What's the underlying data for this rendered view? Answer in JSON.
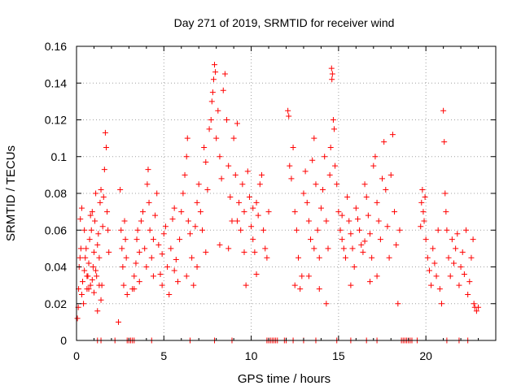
{
  "chart_data": {
    "type": "scatter",
    "title": "Day 271 of 2019, SRMTID for receiver wind",
    "xlabel": "GPS time / hours",
    "ylabel": "SRMTID / TECUs",
    "xlim": [
      0,
      24
    ],
    "ylim": [
      0,
      0.16
    ],
    "x_ticks": [
      0,
      5,
      10,
      15,
      20
    ],
    "x_tick_labels": [
      "0",
      "5",
      "10",
      "15",
      "20"
    ],
    "y_ticks": [
      0,
      0.02,
      0.04,
      0.06,
      0.08,
      0.1,
      0.12,
      0.14,
      0.16
    ],
    "y_tick_labels": [
      "0",
      "0.02",
      "0.04",
      "0.06",
      "0.08",
      "0.1",
      "0.12",
      "0.14",
      "0.16"
    ],
    "grid": true,
    "marker": "plus",
    "color": "#ff0000",
    "series": [
      {
        "name": "SRMTID",
        "points": [
          [
            0.05,
            0.012
          ],
          [
            0.1,
            0.018
          ],
          [
            0.12,
            0.028
          ],
          [
            0.15,
            0.04
          ],
          [
            0.2,
            0.045
          ],
          [
            0.22,
            0.066
          ],
          [
            0.3,
            0.025
          ],
          [
            0.35,
            0.032
          ],
          [
            0.4,
            0.02
          ],
          [
            0.45,
            0.038
          ],
          [
            0.5,
            0.045
          ],
          [
            0.55,
            0.05
          ],
          [
            0.6,
            0.028
          ],
          [
            0.65,
            0.035
          ],
          [
            0.7,
            0.042
          ],
          [
            0.75,
            0.055
          ],
          [
            0.8,
            0.03
          ],
          [
            0.85,
            0.06
          ],
          [
            0.9,
            0.07
          ],
          [
            0.95,
            0.04
          ],
          [
            1.0,
            0.048
          ],
          [
            1.05,
            0.065
          ],
          [
            1.1,
            0.08
          ],
          [
            1.15,
            0.035
          ],
          [
            1.2,
            0.052
          ],
          [
            1.25,
            0.058
          ],
          [
            1.3,
            0.045
          ],
          [
            1.35,
            0.075
          ],
          [
            1.4,
            0.082
          ],
          [
            1.45,
            0.03
          ],
          [
            1.5,
            0.062
          ],
          [
            1.55,
            0.078
          ],
          [
            1.6,
            0.093
          ],
          [
            1.65,
            0.113
          ],
          [
            1.7,
            0.105
          ],
          [
            1.75,
            0.07
          ],
          [
            1.8,
            0.06
          ],
          [
            1.85,
            0.048
          ],
          [
            1.2,
            0.016
          ],
          [
            0.3,
            0.072
          ],
          [
            0.6,
            0.035
          ],
          [
            0.7,
            0.028
          ],
          [
            0.9,
            0.033
          ],
          [
            1.0,
            0.026
          ],
          [
            1.1,
            0.038
          ],
          [
            1.3,
            0.03
          ],
          [
            1.4,
            0.022
          ],
          [
            0.8,
            0.068
          ],
          [
            0.45,
            0.06
          ],
          [
            0.25,
            0.05
          ],
          [
            2.4,
            0.01
          ],
          [
            2.5,
            0.082
          ],
          [
            2.55,
            0.06
          ],
          [
            2.6,
            0.05
          ],
          [
            2.65,
            0.04
          ],
          [
            2.7,
            0.03
          ],
          [
            2.75,
            0.065
          ],
          [
            2.8,
            0.055
          ],
          [
            2.85,
            0.045
          ],
          [
            2.9,
            0.025
          ],
          [
            3.2,
            0.028
          ],
          [
            3.3,
            0.035
          ],
          [
            3.4,
            0.042
          ],
          [
            3.45,
            0.055
          ],
          [
            3.5,
            0.06
          ],
          [
            3.6,
            0.048
          ],
          [
            3.7,
            0.065
          ],
          [
            3.8,
            0.07
          ],
          [
            3.9,
            0.05
          ],
          [
            4.0,
            0.04
          ],
          [
            4.05,
            0.085
          ],
          [
            4.1,
            0.093
          ],
          [
            4.15,
            0.075
          ],
          [
            4.2,
            0.06
          ],
          [
            4.3,
            0.045
          ],
          [
            4.4,
            0.055
          ],
          [
            4.5,
            0.068
          ],
          [
            4.6,
            0.08
          ],
          [
            4.7,
            0.052
          ],
          [
            4.8,
            0.036
          ],
          [
            4.9,
            0.047
          ],
          [
            5.0,
            0.058
          ],
          [
            5.1,
            0.062
          ],
          [
            5.2,
            0.04
          ],
          [
            5.3,
            0.025
          ],
          [
            5.4,
            0.05
          ],
          [
            5.5,
            0.066
          ],
          [
            5.6,
            0.072
          ],
          [
            5.7,
            0.044
          ],
          [
            5.8,
            0.032
          ],
          [
            5.9,
            0.055
          ],
          [
            6.0,
            0.07
          ],
          [
            6.1,
            0.08
          ],
          [
            6.2,
            0.09
          ],
          [
            6.3,
            0.1
          ],
          [
            6.35,
            0.11
          ],
          [
            6.4,
            0.065
          ],
          [
            6.5,
            0.058
          ],
          [
            6.6,
            0.045
          ],
          [
            6.7,
            0.03
          ],
          [
            6.8,
            0.062
          ],
          [
            6.9,
            0.075
          ],
          [
            7.0,
            0.085
          ],
          [
            7.1,
            0.07
          ],
          [
            7.2,
            0.06
          ],
          [
            7.3,
            0.105
          ],
          [
            7.4,
            0.097
          ],
          [
            7.5,
            0.082
          ],
          [
            7.6,
            0.115
          ],
          [
            7.7,
            0.12
          ],
          [
            7.75,
            0.13
          ],
          [
            7.8,
            0.135
          ],
          [
            7.85,
            0.142
          ],
          [
            7.9,
            0.15
          ],
          [
            7.95,
            0.146
          ],
          [
            8.0,
            0.11
          ],
          [
            8.1,
            0.125
          ],
          [
            8.2,
            0.1
          ],
          [
            8.3,
            0.088
          ],
          [
            8.4,
            0.136
          ],
          [
            8.5,
            0.145
          ],
          [
            8.6,
            0.12
          ],
          [
            8.7,
            0.095
          ],
          [
            8.8,
            0.078
          ],
          [
            8.9,
            0.065
          ],
          [
            9.0,
            0.11
          ],
          [
            9.1,
            0.09
          ],
          [
            9.2,
            0.118
          ],
          [
            9.3,
            0.075
          ],
          [
            9.4,
            0.06
          ],
          [
            9.5,
            0.085
          ],
          [
            9.6,
            0.07
          ],
          [
            9.7,
            0.03
          ],
          [
            9.8,
            0.092
          ],
          [
            9.9,
            0.078
          ],
          [
            10.0,
            0.062
          ],
          [
            10.1,
            0.055
          ],
          [
            10.2,
            0.048
          ],
          [
            10.3,
            0.075
          ],
          [
            10.4,
            0.068
          ],
          [
            10.5,
            0.085
          ],
          [
            10.6,
            0.09
          ],
          [
            10.7,
            0.06
          ],
          [
            10.8,
            0.05
          ],
          [
            10.9,
            0.045
          ],
          [
            11.0,
            0.07
          ],
          [
            10.3,
            0.036
          ],
          [
            9.6,
            0.048
          ],
          [
            8.7,
            0.05
          ],
          [
            8.2,
            0.052
          ],
          [
            7.4,
            0.048
          ],
          [
            6.9,
            0.04
          ],
          [
            6.3,
            0.035
          ],
          [
            5.6,
            0.038
          ],
          [
            4.9,
            0.03
          ],
          [
            4.4,
            0.035
          ],
          [
            3.6,
            0.032
          ],
          [
            3.3,
            0.028
          ],
          [
            9.2,
            0.065
          ],
          [
            10.1,
            0.072
          ],
          [
            12.1,
            0.125
          ],
          [
            12.15,
            0.122
          ],
          [
            12.2,
            0.095
          ],
          [
            12.3,
            0.088
          ],
          [
            12.4,
            0.105
          ],
          [
            12.5,
            0.07
          ],
          [
            12.6,
            0.06
          ],
          [
            12.7,
            0.045
          ],
          [
            12.8,
            0.028
          ],
          [
            12.9,
            0.035
          ],
          [
            13.0,
            0.08
          ],
          [
            13.1,
            0.092
          ],
          [
            13.2,
            0.075
          ],
          [
            13.3,
            0.065
          ],
          [
            13.4,
            0.055
          ],
          [
            13.5,
            0.098
          ],
          [
            13.6,
            0.11
          ],
          [
            13.7,
            0.085
          ],
          [
            13.8,
            0.06
          ],
          [
            13.9,
            0.045
          ],
          [
            14.0,
            0.072
          ],
          [
            14.1,
            0.082
          ],
          [
            14.2,
            0.1
          ],
          [
            14.3,
            0.065
          ],
          [
            14.4,
            0.05
          ],
          [
            14.5,
            0.09
          ],
          [
            14.55,
            0.105
          ],
          [
            14.6,
            0.148
          ],
          [
            14.62,
            0.142
          ],
          [
            14.65,
            0.145
          ],
          [
            14.7,
            0.12
          ],
          [
            14.75,
            0.115
          ],
          [
            14.8,
            0.095
          ],
          [
            14.9,
            0.085
          ],
          [
            15.0,
            0.07
          ],
          [
            15.1,
            0.06
          ],
          [
            15.2,
            0.055
          ],
          [
            15.3,
            0.05
          ],
          [
            15.4,
            0.045
          ],
          [
            15.5,
            0.078
          ],
          [
            15.6,
            0.065
          ],
          [
            15.7,
            0.058
          ],
          [
            15.8,
            0.05
          ],
          [
            15.9,
            0.04
          ],
          [
            16.0,
            0.072
          ],
          [
            16.1,
            0.066
          ],
          [
            16.2,
            0.06
          ],
          [
            16.3,
            0.052
          ],
          [
            16.4,
            0.048
          ],
          [
            16.5,
            0.085
          ],
          [
            16.6,
            0.078
          ],
          [
            16.7,
            0.068
          ],
          [
            16.8,
            0.058
          ],
          [
            16.9,
            0.045
          ],
          [
            17.0,
            0.095
          ],
          [
            17.1,
            0.1
          ],
          [
            17.2,
            0.075
          ],
          [
            17.3,
            0.065
          ],
          [
            17.4,
            0.055
          ],
          [
            17.5,
            0.088
          ],
          [
            17.6,
            0.108
          ],
          [
            17.7,
            0.082
          ],
          [
            17.8,
            0.062
          ],
          [
            17.9,
            0.045
          ],
          [
            18.0,
            0.09
          ],
          [
            18.1,
            0.112
          ],
          [
            18.2,
            0.07
          ],
          [
            18.3,
            0.052
          ],
          [
            18.4,
            0.02
          ],
          [
            18.5,
            0.06
          ],
          [
            13.3,
            0.035
          ],
          [
            13.9,
            0.028
          ],
          [
            14.3,
            0.02
          ],
          [
            15.7,
            0.03
          ],
          [
            16.8,
            0.032
          ],
          [
            17.2,
            0.035
          ],
          [
            12.5,
            0.03
          ],
          [
            13.6,
            0.05
          ],
          [
            15.2,
            0.068
          ],
          [
            16.5,
            0.054
          ],
          [
            19.7,
            0.062
          ],
          [
            19.75,
            0.075
          ],
          [
            19.8,
            0.082
          ],
          [
            19.85,
            0.07
          ],
          [
            19.9,
            0.065
          ],
          [
            19.95,
            0.078
          ],
          [
            20.0,
            0.055
          ],
          [
            20.1,
            0.045
          ],
          [
            20.2,
            0.038
          ],
          [
            20.3,
            0.03
          ],
          [
            20.4,
            0.05
          ],
          [
            20.5,
            0.042
          ],
          [
            20.6,
            0.035
          ],
          [
            20.7,
            0.06
          ],
          [
            20.8,
            0.028
          ],
          [
            20.9,
            0.02
          ],
          [
            21.0,
            0.125
          ],
          [
            21.05,
            0.108
          ],
          [
            21.1,
            0.08
          ],
          [
            21.15,
            0.07
          ],
          [
            21.2,
            0.06
          ],
          [
            21.3,
            0.045
          ],
          [
            21.4,
            0.035
          ],
          [
            21.5,
            0.055
          ],
          [
            21.6,
            0.042
          ],
          [
            21.7,
            0.05
          ],
          [
            21.8,
            0.058
          ],
          [
            21.9,
            0.03
          ],
          [
            22.0,
            0.04
          ],
          [
            22.1,
            0.048
          ],
          [
            22.2,
            0.036
          ],
          [
            22.3,
            0.06
          ],
          [
            22.4,
            0.025
          ],
          [
            22.5,
            0.032
          ],
          [
            22.6,
            0.045
          ],
          [
            22.7,
            0.055
          ],
          [
            22.75,
            0.02
          ],
          [
            22.8,
            0.018
          ],
          [
            22.9,
            0.016
          ],
          [
            23.0,
            0.018
          ]
        ]
      }
    ],
    "zero_points_x": [
      1.2,
      1.4,
      2.2,
      2.9,
      3.0,
      3.1,
      3.2,
      3.3,
      4.3,
      6.5,
      7.9,
      8.9,
      10.9,
      11.0,
      11.1,
      11.2,
      11.3,
      11.4,
      11.5,
      11.9,
      12.0,
      12.4,
      13.0,
      13.7,
      14.9,
      15.7,
      16.6,
      17.2,
      18.6,
      18.7,
      18.8,
      18.9,
      19.0,
      19.1,
      19.2,
      19.5,
      21.2,
      21.9,
      22.4
    ]
  }
}
